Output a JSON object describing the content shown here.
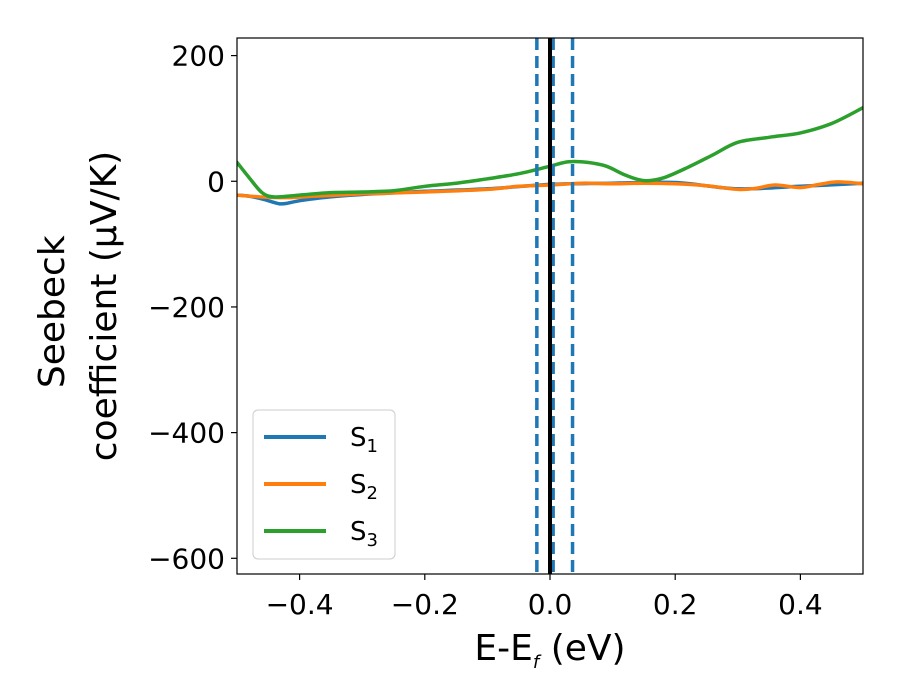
{
  "chart_data": {
    "type": "line",
    "xlabel": "E-E",
    "xlabel_sub": "f",
    "xlabel_unit": "(eV)",
    "ylabel_line1": "Seebeck",
    "ylabel_line2": "coefficient  (μV/K)",
    "xlim": [
      -0.5,
      0.5
    ],
    "ylim": [
      -625,
      228
    ],
    "xticks": [
      -0.4,
      -0.2,
      0.0,
      0.2,
      0.4
    ],
    "xtick_labels": [
      "−0.4",
      "−0.2",
      "0.0",
      "0.2",
      "0.4"
    ],
    "yticks": [
      -600,
      -400,
      -200,
      0,
      200
    ],
    "ytick_labels": [
      "−600",
      "−400",
      "−200",
      "0",
      "200"
    ],
    "grid": false,
    "legend_position": "lower-left",
    "vlines": [
      {
        "x": -0.021,
        "style": "dashed",
        "color": "#1f77b4"
      },
      {
        "x": 0.005,
        "style": "dashed",
        "color": "#1f77b4"
      },
      {
        "x": 0.036,
        "style": "dashed",
        "color": "#1f77b4"
      },
      {
        "x": 0.0,
        "style": "solid",
        "color": "#000000"
      }
    ],
    "series": [
      {
        "name": "S",
        "name_sub": "1",
        "color": "#1f77b4",
        "x": [
          -0.5,
          -0.48,
          -0.46,
          -0.44,
          -0.43,
          -0.42,
          -0.4,
          -0.37,
          -0.34,
          -0.3,
          -0.26,
          -0.2,
          -0.1,
          0.0,
          0.1,
          0.2,
          0.3,
          0.4,
          0.5
        ],
        "y": [
          -22,
          -24,
          -28,
          -34,
          -36,
          -35,
          -31,
          -27,
          -24,
          -21,
          -19,
          -16,
          -12,
          -5,
          -3,
          -2,
          -12,
          -8,
          -3
        ]
      },
      {
        "name": "S",
        "name_sub": "2",
        "color": "#ff7f0e",
        "x": [
          -0.5,
          -0.46,
          -0.42,
          -0.38,
          -0.34,
          -0.3,
          -0.26,
          -0.2,
          -0.1,
          -0.05,
          0.0,
          0.05,
          0.1,
          0.15,
          0.2,
          0.25,
          0.3,
          0.33,
          0.36,
          0.4,
          0.43,
          0.46,
          0.5
        ],
        "y": [
          -22,
          -25,
          -26,
          -24,
          -22,
          -20,
          -19,
          -17,
          -13,
          -8,
          -6,
          -3,
          -4,
          -3,
          -4,
          -7,
          -13,
          -11,
          -6,
          -10,
          -5,
          -1,
          -4
        ]
      },
      {
        "name": "S",
        "name_sub": "3",
        "color": "#2ca02c",
        "x": [
          -0.5,
          -0.48,
          -0.46,
          -0.44,
          -0.4,
          -0.35,
          -0.3,
          -0.25,
          -0.2,
          -0.15,
          -0.1,
          -0.05,
          0.0,
          0.03,
          0.06,
          0.09,
          0.12,
          0.15,
          0.18,
          0.22,
          0.26,
          0.3,
          0.35,
          0.4,
          0.45,
          0.5
        ],
        "y": [
          30,
          5,
          -18,
          -25,
          -22,
          -18,
          -17,
          -15,
          -8,
          -3,
          4,
          12,
          24,
          31,
          30,
          24,
          10,
          1,
          5,
          22,
          42,
          62,
          70,
          77,
          92,
          117
        ]
      }
    ]
  }
}
